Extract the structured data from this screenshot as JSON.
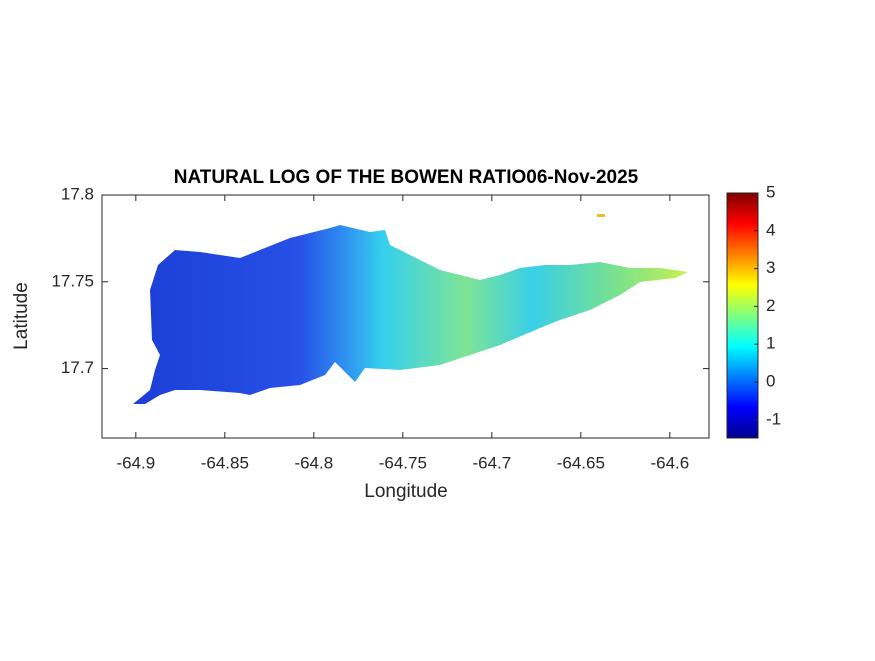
{
  "chart_data": {
    "type": "map",
    "title": "NATURAL LOG OF THE BOWEN RATIO06-Nov-2025",
    "x_label": "Longitude",
    "y_label": "Latitude",
    "xlim": [
      -64.919,
      -64.578
    ],
    "xticks": [
      -64.9,
      -64.85,
      -64.8,
      -64.75,
      -64.7,
      -64.65,
      -64.6
    ],
    "ylim": [
      17.66,
      17.8
    ],
    "yticks": [
      17.7,
      17.75,
      17.8
    ],
    "colormap": "jet",
    "clim": [
      -1.48,
      5
    ],
    "cticks": [
      -1,
      0,
      1,
      2,
      3,
      4,
      5
    ]
  }
}
